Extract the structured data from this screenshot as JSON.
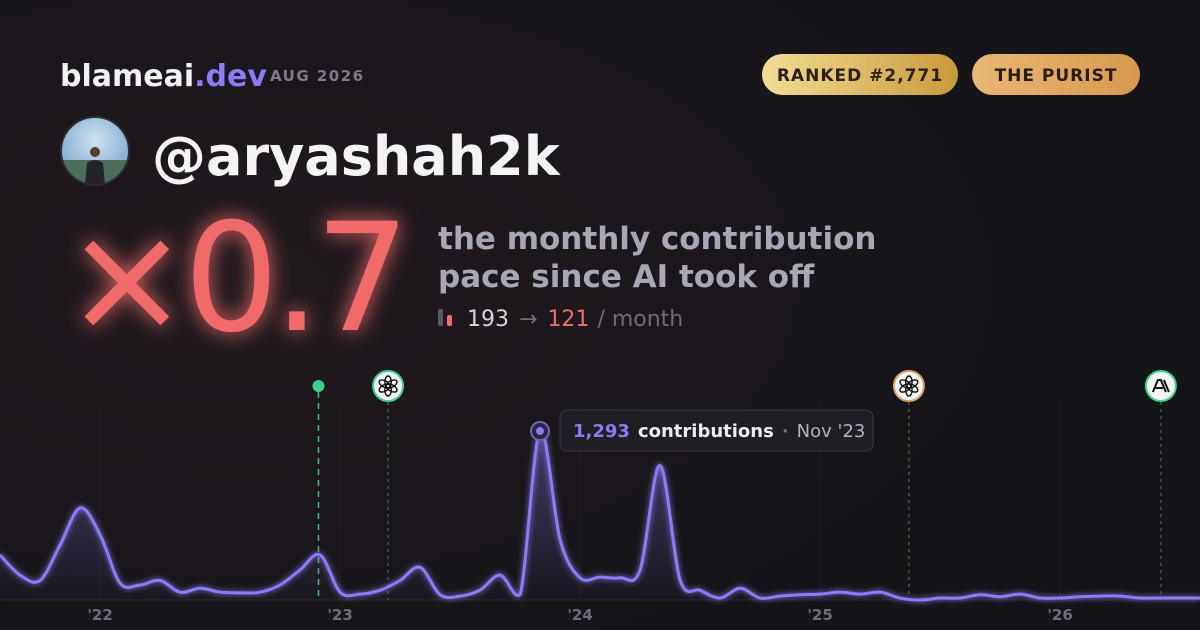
{
  "header": {
    "brand": "blameai",
    "brand_tld": ".dev",
    "date": "AUG 2026",
    "badges": [
      "RANKED #2,771",
      "THE PURIST"
    ],
    "username": "@aryashah2k",
    "multiplier": "×0.7",
    "description": [
      "the monthly contribution",
      "pace since AI took off"
    ],
    "stats": {
      "before": 193,
      "arrow": "→",
      "after": 121,
      "unit": "/ month"
    }
  },
  "chart_data": {
    "type": "line",
    "x": [
      2021.583,
      2021.667,
      2021.75,
      2021.833,
      2021.917,
      2022,
      2022.083,
      2022.167,
      2022.25,
      2022.333,
      2022.417,
      2022.5,
      2022.583,
      2022.667,
      2022.75,
      2022.833,
      2022.917,
      2023,
      2023.083,
      2023.167,
      2023.25,
      2023.333,
      2023.417,
      2023.5,
      2023.583,
      2023.667,
      2023.75,
      2023.833,
      2023.917,
      2024,
      2024.083,
      2024.167,
      2024.25,
      2024.333,
      2024.417,
      2024.5,
      2024.583,
      2024.667,
      2024.75,
      2024.833,
      2024.917,
      2025,
      2025.083,
      2025.167,
      2025.25,
      2025.333,
      2025.417,
      2025.5,
      2025.583,
      2025.667,
      2025.75,
      2025.833,
      2025.917,
      2026,
      2026.083,
      2026.167,
      2026.25,
      2026.333,
      2026.417,
      2026.5,
      2026.583
    ],
    "values": [
      345,
      190,
      150,
      420,
      705,
      500,
      130,
      115,
      150,
      60,
      90,
      60,
      55,
      60,
      115,
      230,
      345,
      60,
      45,
      75,
      150,
      250,
      40,
      30,
      75,
      190,
      40,
      1293,
      460,
      170,
      175,
      170,
      230,
      1030,
      150,
      75,
      15,
      90,
      15,
      30,
      40,
      45,
      60,
      45,
      60,
      15,
      0,
      15,
      15,
      40,
      25,
      45,
      15,
      15,
      25,
      30,
      30,
      15,
      15,
      15,
      15
    ],
    "color": "#8b7cf6",
    "xlim": [
      2021.583,
      2026.583
    ],
    "ylim": [
      0,
      1500
    ],
    "xticks": [
      {
        "value": 2022,
        "label": "'22"
      },
      {
        "value": 2023,
        "label": "'23"
      },
      {
        "value": 2024,
        "label": "'24"
      },
      {
        "value": 2025,
        "label": "'25"
      },
      {
        "value": 2026,
        "label": "'26"
      }
    ],
    "grid": true,
    "events": [
      {
        "x": 2022.91,
        "color": "#3ecf8e"
      },
      {
        "x": 2023.2,
        "color": "#3ecf8e"
      },
      {
        "x": 2025.37,
        "color": "#d9a066"
      },
      {
        "x": 2026.42,
        "color": "#3ecf8e"
      }
    ],
    "tooltip": {
      "value": 1293,
      "label": "1,293",
      "unit": "contributions",
      "separator": "·",
      "date": "Nov '23"
    }
  }
}
